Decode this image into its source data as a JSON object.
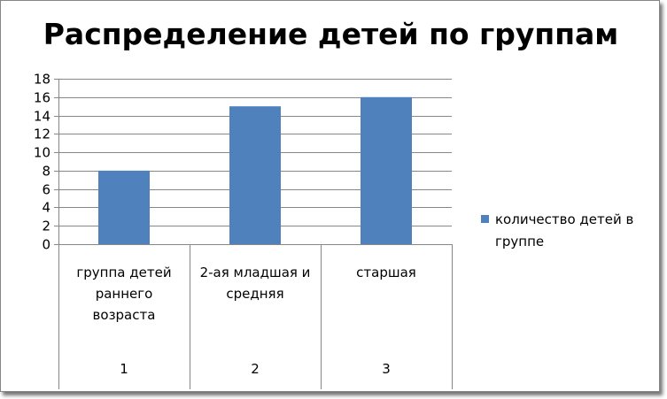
{
  "chart_data": {
    "type": "bar",
    "title": "Распределение детей по группам",
    "xlabel": "",
    "ylabel": "",
    "ylim": [
      0,
      18
    ],
    "ytick_step": 2,
    "grid": true,
    "legend_position": "right",
    "categories": [
      {
        "name": "группа детей раннего возраста",
        "name_lines": [
          "группа детей",
          "раннего",
          "возраста"
        ],
        "number": "1"
      },
      {
        "name": "2-ая младшая и средняя",
        "name_lines": [
          "2-ая младшая и",
          "средняя"
        ],
        "number": "2"
      },
      {
        "name": "старшая",
        "name_lines": [
          "старшая"
        ],
        "number": "3"
      }
    ],
    "series": [
      {
        "name": "количество детей в группе",
        "values": [
          8,
          15,
          16
        ],
        "color": "#4f81bd"
      }
    ]
  },
  "legend": {
    "label": "количество детей в группе"
  },
  "colors": {
    "bar": "#4f81bd",
    "grid": "#878787",
    "axis": "#878787"
  }
}
